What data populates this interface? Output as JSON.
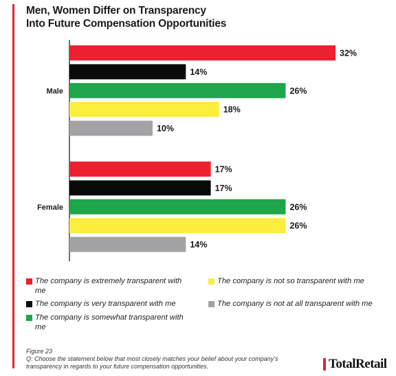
{
  "title_lines": [
    "Men, Women Differ on Transparency",
    "Into Future Compensation Opportunities"
  ],
  "figure_label": "Figure 23",
  "question": "Q: Choose the statement below that most closely matches your belief about your company’s transparency in regards to your future compensation opportunities.",
  "brand": {
    "name": "TotalRetail",
    "accent": "#e0262f"
  },
  "chart_data": {
    "type": "bar",
    "orientation": "horizontal",
    "categories": [
      "Male",
      "Female"
    ],
    "series": [
      {
        "name": "The company is extremely transparent with me",
        "color": "#ec2130",
        "values": [
          32,
          17
        ]
      },
      {
        "name": "The company is very transparent with me",
        "color": "#0a0a0a",
        "values": [
          14,
          17
        ]
      },
      {
        "name": "The company is somewhat transparent with me",
        "color": "#1fa64a",
        "values": [
          26,
          26
        ]
      },
      {
        "name": "The company is not so transparent with me",
        "color": "#fbee3c",
        "values": [
          18,
          26
        ]
      },
      {
        "name": "The company is not at all transparent with me",
        "color": "#a3a3a5",
        "values": [
          10,
          14
        ]
      }
    ],
    "value_suffix": "%",
    "xlim": [
      0,
      32
    ],
    "legend_position": "bottom",
    "grid": false
  }
}
